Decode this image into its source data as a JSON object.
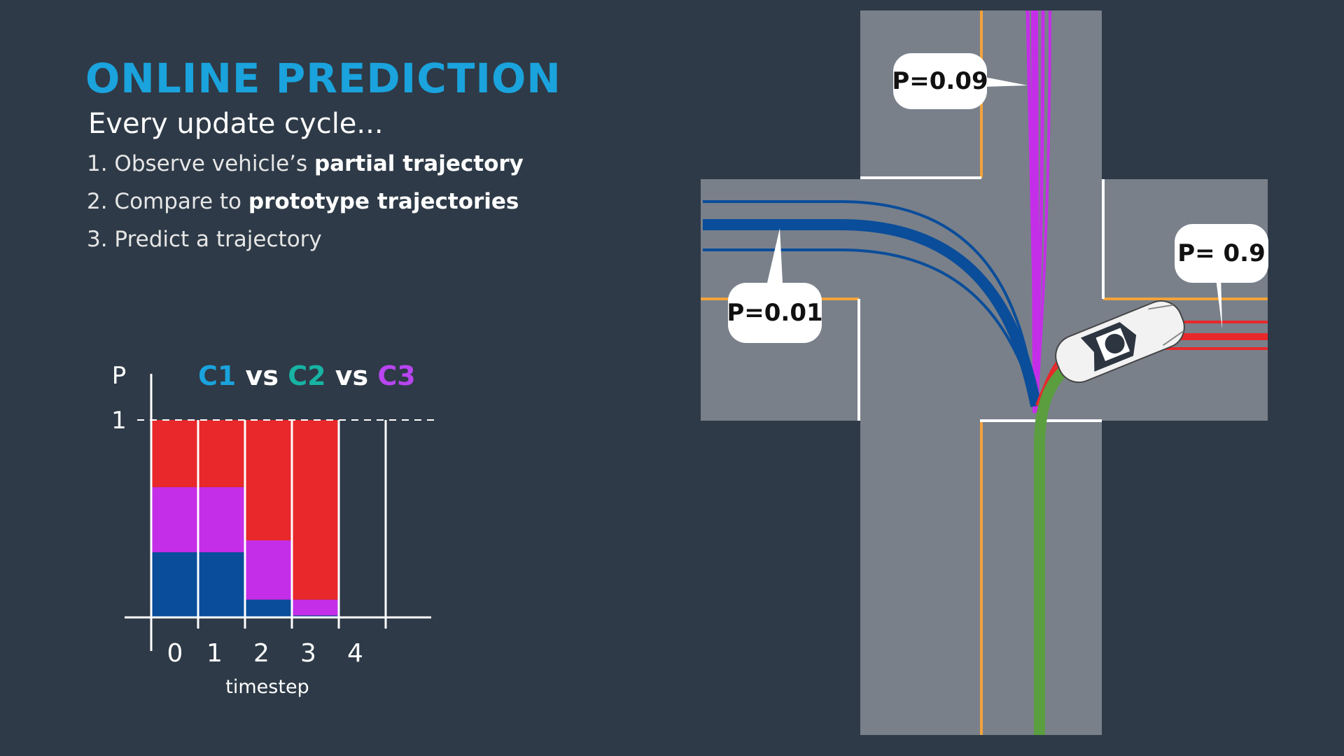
{
  "title": "ONLINE PREDICTION",
  "subtitle": "Every update cycle...",
  "steps": [
    {
      "prefix": "1. Observe vehicle’s ",
      "bold": "partial trajectory"
    },
    {
      "prefix": "2. Compare to ",
      "bold": "prototype trajectories"
    },
    {
      "prefix": "3. Predict a trajectory",
      "bold": ""
    }
  ],
  "bubbles": {
    "purple": "P=0.09",
    "blue": "P=0.01",
    "red": "P= 0.9"
  },
  "colors": {
    "background": "#2e3a47",
    "title": "#1aa3dc",
    "c1": "#1aa3dc",
    "c2": "#17b3a3",
    "c3": "#b845f0",
    "red": "#e8282b",
    "purple": "#c52ee8",
    "blue": "#0a4d9a",
    "green": "#5a9e3f",
    "road": "#79808a",
    "lane_orange": "#f3a23a"
  },
  "chart_data": {
    "type": "bar",
    "stacked": true,
    "title_parts": [
      {
        "text": "C1",
        "color": "#1aa3dc"
      },
      {
        "text": " vs ",
        "color": "#ffffff"
      },
      {
        "text": "C2",
        "color": "#17b3a3"
      },
      {
        "text": " vs ",
        "color": "#ffffff"
      },
      {
        "text": "C3",
        "color": "#b845f0"
      }
    ],
    "ylabel": "P",
    "xlabel": "timestep",
    "yticks": [
      "1"
    ],
    "ylim": [
      0,
      1
    ],
    "categories": [
      "0",
      "1",
      "2",
      "3",
      "4"
    ],
    "series": [
      {
        "color": "#0a4d9a",
        "values": [
          0.33,
          0.33,
          0.09,
          0.01,
          0
        ]
      },
      {
        "color": "#c52ee8",
        "values": [
          0.33,
          0.33,
          0.3,
          0.08,
          0
        ]
      },
      {
        "color": "#e8282b",
        "values": [
          0.34,
          0.34,
          0.61,
          0.91,
          0
        ]
      }
    ]
  }
}
